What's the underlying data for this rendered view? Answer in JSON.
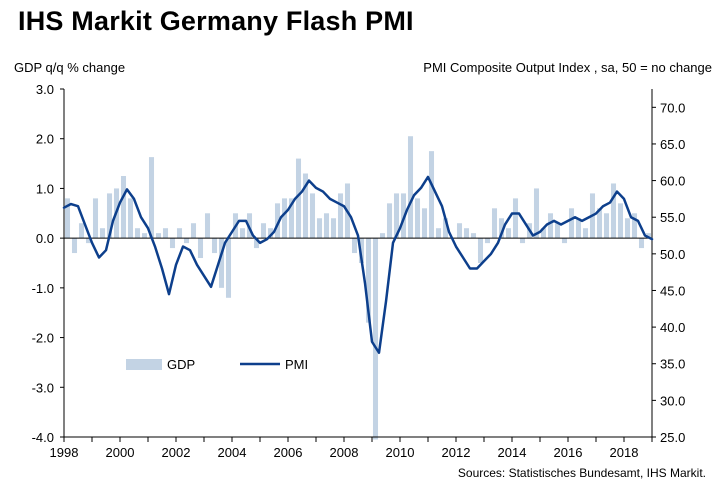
{
  "page": {
    "title": "IHS Markit Germany Flash PMI",
    "source": "Sources: Statistisches Bundesamt, IHS Markit."
  },
  "chart_data": {
    "type": "bar+line",
    "title": "IHS Markit Germany Flash PMI",
    "ylabel_left": "GDP q/q % change",
    "ylabel_right": "PMI Composite  Output Index , sa, 50 = no change",
    "ylim_left": [
      -4.0,
      3.0
    ],
    "ylim_right": [
      25.0,
      72.5
    ],
    "yticks_left": [
      "3.0",
      "2.0",
      "1.0",
      "0.0",
      "-1.0",
      "-2.0",
      "-3.0",
      "-4.0"
    ],
    "yticks_left_values": [
      3,
      2,
      1,
      0,
      -1,
      -2,
      -3,
      -4
    ],
    "yticks_right": [
      "70.0",
      "65.0",
      "60.0",
      "55.0",
      "50.0",
      "45.0",
      "40.0",
      "35.0",
      "30.0",
      "25.0"
    ],
    "yticks_right_values": [
      70,
      65,
      60,
      55,
      50,
      45,
      40,
      35,
      30,
      25
    ],
    "xticks": [
      "1998",
      "2000",
      "2002",
      "2004",
      "2006",
      "2008",
      "2010",
      "2012",
      "2014",
      "2016",
      "2018"
    ],
    "xticks_values": [
      1998,
      2000,
      2002,
      2004,
      2006,
      2008,
      2010,
      2012,
      2014,
      2016,
      2018
    ],
    "xlim": [
      1998,
      2019
    ],
    "grid": false,
    "legend": {
      "position": "bottom-left",
      "entries": [
        "GDP",
        "PMI"
      ]
    },
    "colors": {
      "gdp": "#c3d3e4",
      "pmi": "#0d3f8c"
    },
    "series": [
      {
        "name": "GDP",
        "type": "bar",
        "axis": "left",
        "x": [
          1998.0,
          1998.25,
          1998.5,
          1998.75,
          1999.0,
          1999.25,
          1999.5,
          1999.75,
          2000.0,
          2000.25,
          2000.5,
          2000.75,
          2001.0,
          2001.25,
          2001.5,
          2001.75,
          2002.0,
          2002.25,
          2002.5,
          2002.75,
          2003.0,
          2003.25,
          2003.5,
          2003.75,
          2004.0,
          2004.25,
          2004.5,
          2004.75,
          2005.0,
          2005.25,
          2005.5,
          2005.75,
          2006.0,
          2006.25,
          2006.5,
          2006.75,
          2007.0,
          2007.25,
          2007.5,
          2007.75,
          2008.0,
          2008.25,
          2008.5,
          2008.75,
          2009.0,
          2009.25,
          2009.5,
          2009.75,
          2010.0,
          2010.25,
          2010.5,
          2010.75,
          2011.0,
          2011.25,
          2011.5,
          2011.75,
          2012.0,
          2012.25,
          2012.5,
          2012.75,
          2013.0,
          2013.25,
          2013.5,
          2013.75,
          2014.0,
          2014.25,
          2014.5,
          2014.75,
          2015.0,
          2015.25,
          2015.5,
          2015.75,
          2016.0,
          2016.25,
          2016.5,
          2016.75,
          2017.0,
          2017.25,
          2017.5,
          2017.75,
          2018.0,
          2018.25,
          2018.5,
          2018.75
        ],
        "values": [
          0.8,
          -0.3,
          0.3,
          -0.1,
          0.8,
          0.2,
          0.9,
          1.0,
          1.25,
          0.8,
          0.2,
          0.1,
          1.63,
          0.1,
          0.2,
          -0.2,
          0.2,
          -0.1,
          0.3,
          -0.4,
          0.5,
          -0.3,
          -1.0,
          -1.2,
          0.5,
          0.2,
          0.5,
          -0.2,
          0.3,
          0.2,
          0.7,
          0.8,
          0.8,
          1.6,
          1.3,
          0.9,
          0.4,
          0.5,
          0.4,
          0.9,
          1.1,
          -0.3,
          -0.5,
          -1.7,
          -4.05,
          0.1,
          0.7,
          0.9,
          0.9,
          2.05,
          0.8,
          0.6,
          1.75,
          0.2,
          0.4,
          0.0,
          0.3,
          0.2,
          0.1,
          -0.5,
          -0.1,
          0.6,
          0.4,
          0.2,
          0.8,
          -0.1,
          0.3,
          1.0,
          0.2,
          0.5,
          0.3,
          -0.1,
          0.6,
          0.4,
          0.2,
          0.9,
          0.6,
          0.5,
          1.1,
          0.7,
          0.4,
          0.5,
          -0.2,
          0.1
        ]
      },
      {
        "name": "PMI",
        "type": "line",
        "axis": "right",
        "x": [
          1998.0,
          1998.25,
          1998.5,
          1998.75,
          1999.0,
          1999.25,
          1999.5,
          1999.75,
          2000.0,
          2000.25,
          2000.5,
          2000.75,
          2001.0,
          2001.25,
          2001.5,
          2001.75,
          2002.0,
          2002.25,
          2002.5,
          2002.75,
          2003.0,
          2003.25,
          2003.5,
          2003.75,
          2004.0,
          2004.25,
          2004.5,
          2004.75,
          2005.0,
          2005.25,
          2005.5,
          2005.75,
          2006.0,
          2006.25,
          2006.5,
          2006.75,
          2007.0,
          2007.25,
          2007.5,
          2007.75,
          2008.0,
          2008.25,
          2008.5,
          2008.75,
          2009.0,
          2009.25,
          2009.5,
          2009.75,
          2010.0,
          2010.25,
          2010.5,
          2010.75,
          2011.0,
          2011.25,
          2011.5,
          2011.75,
          2012.0,
          2012.25,
          2012.5,
          2012.75,
          2013.0,
          2013.25,
          2013.5,
          2013.75,
          2014.0,
          2014.25,
          2014.5,
          2014.75,
          2015.0,
          2015.25,
          2015.5,
          2015.75,
          2016.0,
          2016.25,
          2016.5,
          2016.75,
          2017.0,
          2017.25,
          2017.5,
          2017.75,
          2018.0,
          2018.25,
          2018.5,
          2018.75,
          2019.0
        ],
        "values": [
          56.3,
          56.8,
          56.5,
          54.0,
          51.5,
          49.5,
          50.5,
          54.5,
          57.0,
          58.8,
          57.5,
          55.0,
          53.5,
          51.0,
          48.0,
          44.5,
          48.5,
          51.0,
          50.5,
          48.5,
          47.0,
          45.5,
          48.5,
          51.5,
          53.0,
          54.5,
          54.5,
          52.5,
          51.5,
          52.0,
          53.0,
          55.0,
          56.0,
          57.5,
          58.5,
          60.0,
          59.0,
          58.5,
          57.5,
          57.0,
          56.5,
          55.0,
          52.5,
          46.0,
          38.0,
          36.5,
          43.5,
          51.5,
          53.5,
          56.0,
          58.0,
          59.0,
          60.5,
          58.5,
          56.5,
          53.0,
          51.0,
          49.5,
          48.0,
          48.0,
          49.0,
          50.0,
          51.5,
          54.0,
          55.5,
          55.5,
          54.0,
          52.5,
          53.0,
          54.0,
          54.5,
          54.0,
          54.5,
          55.0,
          54.5,
          55.0,
          55.5,
          56.5,
          57.0,
          58.5,
          57.5,
          55.0,
          54.5,
          52.5,
          52.0
        ]
      }
    ]
  }
}
